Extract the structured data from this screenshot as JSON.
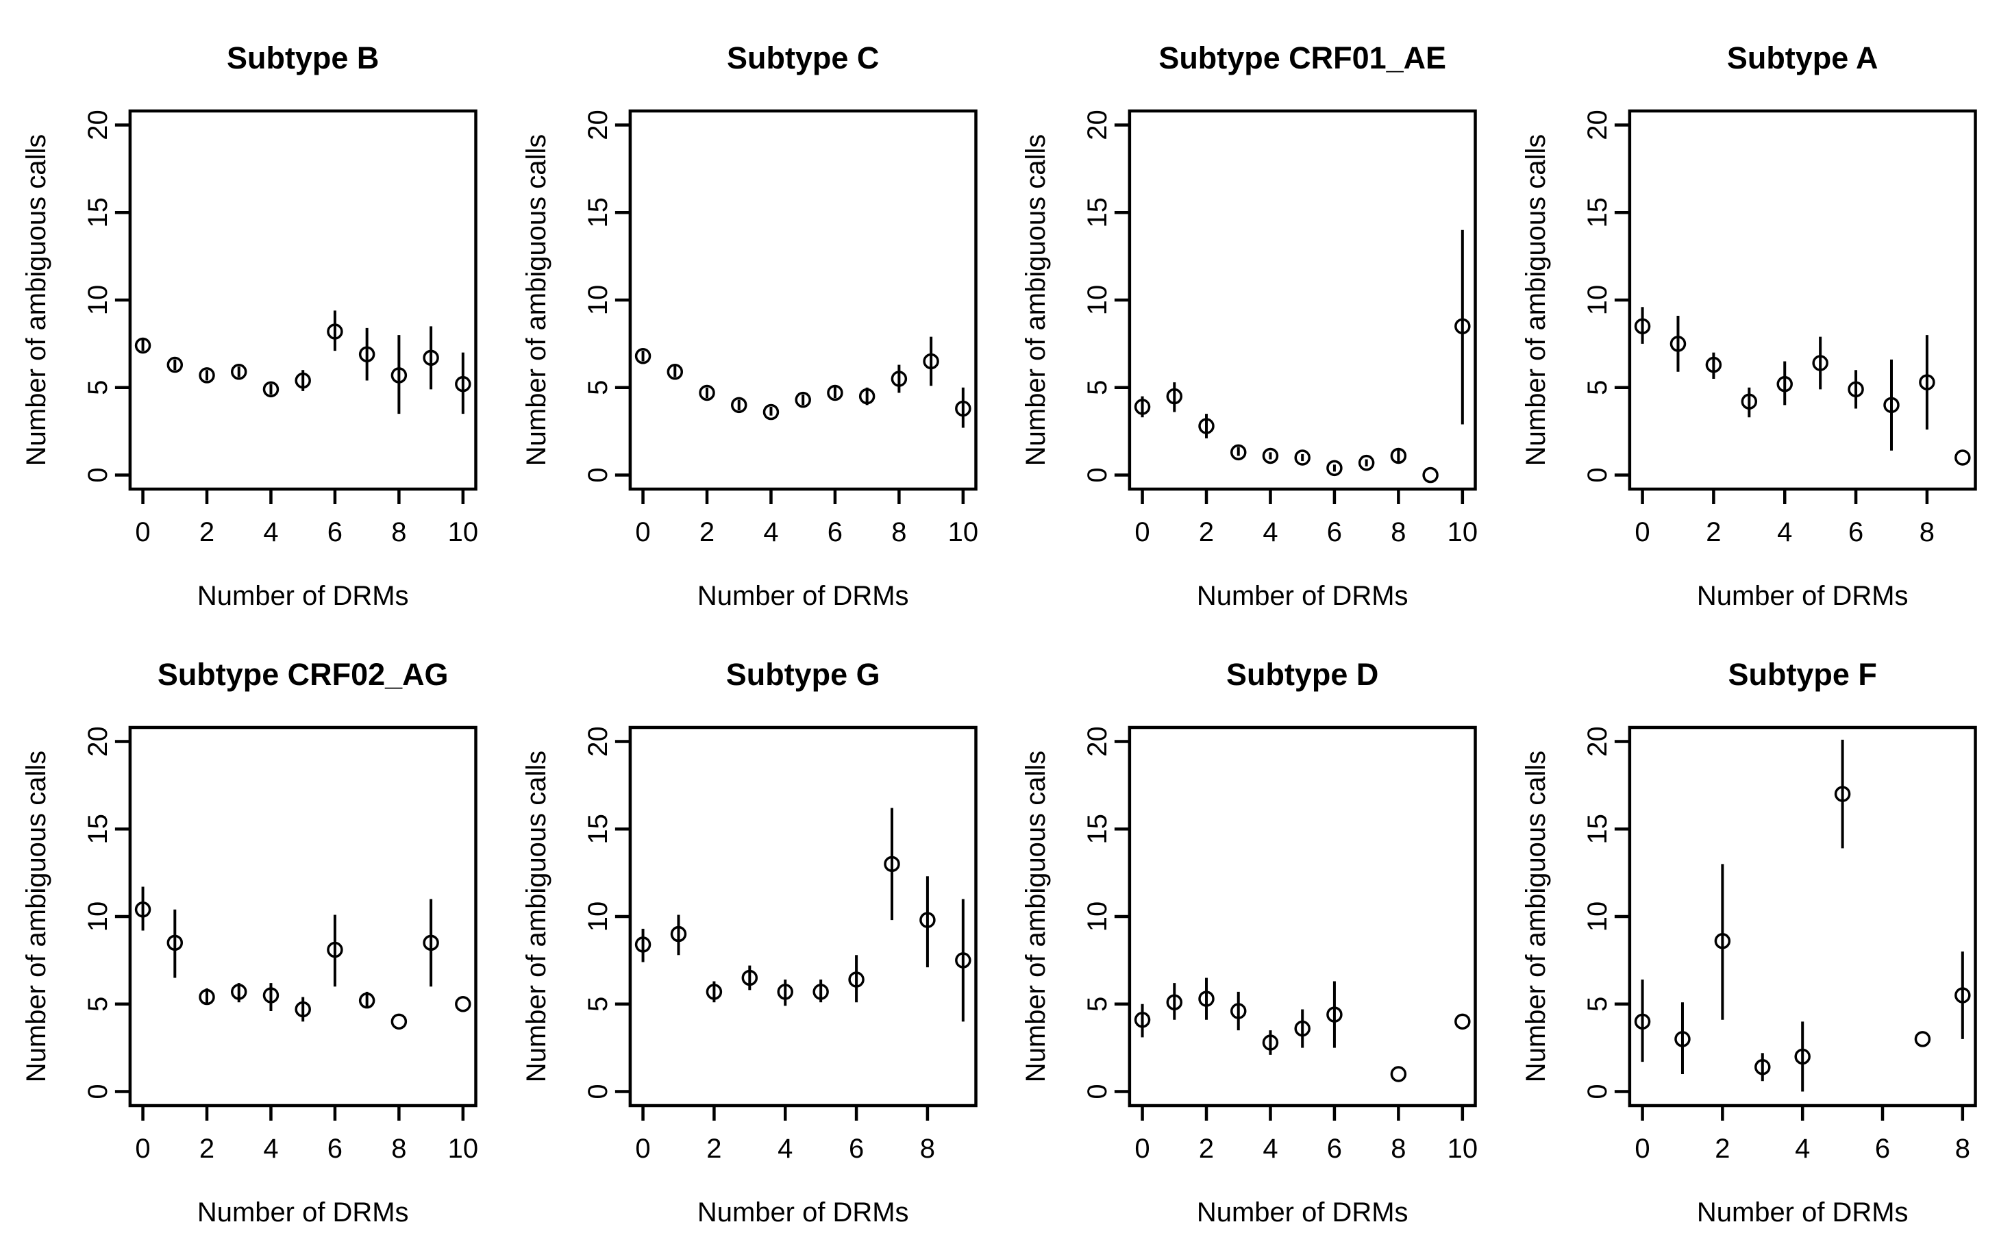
{
  "style": {
    "ink": "#000000",
    "background": "#ffffff"
  },
  "chart_data": [
    {
      "type": "scatter",
      "title": "Subtype B",
      "xlabel": "Number of DRMs",
      "ylabel": "Number of ambiguous calls",
      "xrange": [
        0,
        10
      ],
      "yrange": [
        0,
        20
      ],
      "xticks": [
        0,
        2,
        4,
        6,
        8,
        10
      ],
      "yticks": [
        0,
        5,
        10,
        15,
        20
      ],
      "points": [
        {
          "x": 0,
          "y": 7.4,
          "lo": 7.1,
          "hi": 7.8
        },
        {
          "x": 1,
          "y": 6.3,
          "lo": 6.0,
          "hi": 6.6
        },
        {
          "x": 2,
          "y": 5.7,
          "lo": 5.4,
          "hi": 6.0
        },
        {
          "x": 3,
          "y": 5.9,
          "lo": 5.6,
          "hi": 6.2
        },
        {
          "x": 4,
          "y": 4.9,
          "lo": 4.6,
          "hi": 5.2
        },
        {
          "x": 5,
          "y": 5.4,
          "lo": 4.8,
          "hi": 6.0
        },
        {
          "x": 6,
          "y": 8.2,
          "lo": 7.1,
          "hi": 9.4
        },
        {
          "x": 7,
          "y": 6.9,
          "lo": 5.4,
          "hi": 8.4
        },
        {
          "x": 8,
          "y": 5.7,
          "lo": 3.5,
          "hi": 8.0
        },
        {
          "x": 9,
          "y": 6.7,
          "lo": 4.9,
          "hi": 8.5
        },
        {
          "x": 10,
          "y": 5.2,
          "lo": 3.5,
          "hi": 7.0
        }
      ]
    },
    {
      "type": "scatter",
      "title": "Subtype C",
      "xlabel": "Number of DRMs",
      "ylabel": "Number of ambiguous calls",
      "xrange": [
        0,
        10
      ],
      "yrange": [
        0,
        20
      ],
      "xticks": [
        0,
        2,
        4,
        6,
        8,
        10
      ],
      "yticks": [
        0,
        5,
        10,
        15,
        20
      ],
      "points": [
        {
          "x": 0,
          "y": 6.8,
          "lo": 6.5,
          "hi": 7.1
        },
        {
          "x": 1,
          "y": 5.9,
          "lo": 5.6,
          "hi": 6.3
        },
        {
          "x": 2,
          "y": 4.7,
          "lo": 4.4,
          "hi": 5.0
        },
        {
          "x": 3,
          "y": 4.0,
          "lo": 3.7,
          "hi": 4.3
        },
        {
          "x": 4,
          "y": 3.6,
          "lo": 3.4,
          "hi": 3.9
        },
        {
          "x": 5,
          "y": 4.3,
          "lo": 4.0,
          "hi": 4.6
        },
        {
          "x": 6,
          "y": 4.7,
          "lo": 4.4,
          "hi": 5.1
        },
        {
          "x": 7,
          "y": 4.5,
          "lo": 4.0,
          "hi": 5.0
        },
        {
          "x": 8,
          "y": 5.5,
          "lo": 4.7,
          "hi": 6.3
        },
        {
          "x": 9,
          "y": 6.5,
          "lo": 5.1,
          "hi": 7.9
        },
        {
          "x": 10,
          "y": 3.8,
          "lo": 2.7,
          "hi": 5.0
        }
      ]
    },
    {
      "type": "scatter",
      "title": "Subtype CRF01_AE",
      "xlabel": "Number of DRMs",
      "ylabel": "Number of ambiguous calls",
      "xrange": [
        0,
        10
      ],
      "yrange": [
        0,
        20
      ],
      "xticks": [
        0,
        2,
        4,
        6,
        8,
        10
      ],
      "yticks": [
        0,
        5,
        10,
        15,
        20
      ],
      "points": [
        {
          "x": 0,
          "y": 3.9,
          "lo": 3.3,
          "hi": 4.5
        },
        {
          "x": 1,
          "y": 4.5,
          "lo": 3.6,
          "hi": 5.3
        },
        {
          "x": 2,
          "y": 2.8,
          "lo": 2.1,
          "hi": 3.5
        },
        {
          "x": 3,
          "y": 1.3,
          "lo": 1.1,
          "hi": 1.6
        },
        {
          "x": 4,
          "y": 1.1,
          "lo": 0.9,
          "hi": 1.3
        },
        {
          "x": 5,
          "y": 1.0,
          "lo": 0.8,
          "hi": 1.2
        },
        {
          "x": 6,
          "y": 0.4,
          "lo": 0.2,
          "hi": 0.6
        },
        {
          "x": 7,
          "y": 0.7,
          "lo": 0.5,
          "hi": 0.9
        },
        {
          "x": 8,
          "y": 1.1,
          "lo": 0.7,
          "hi": 1.5
        },
        {
          "x": 9,
          "y": 0.0
        },
        {
          "x": 10,
          "y": 8.5,
          "lo": 2.9,
          "hi": 14.0
        }
      ]
    },
    {
      "type": "scatter",
      "title": "Subtype A",
      "xlabel": "Number of DRMs",
      "ylabel": "Number of ambiguous calls",
      "xrange": [
        0,
        9
      ],
      "yrange": [
        0,
        20
      ],
      "xticks": [
        0,
        2,
        4,
        6,
        8
      ],
      "yticks": [
        0,
        5,
        10,
        15,
        20
      ],
      "points": [
        {
          "x": 0,
          "y": 8.5,
          "lo": 7.5,
          "hi": 9.6
        },
        {
          "x": 1,
          "y": 7.5,
          "lo": 5.9,
          "hi": 9.1
        },
        {
          "x": 2,
          "y": 6.3,
          "lo": 5.5,
          "hi": 7.0
        },
        {
          "x": 3,
          "y": 4.2,
          "lo": 3.3,
          "hi": 5.0
        },
        {
          "x": 4,
          "y": 5.2,
          "lo": 4.0,
          "hi": 6.5
        },
        {
          "x": 5,
          "y": 6.4,
          "lo": 4.9,
          "hi": 7.9
        },
        {
          "x": 6,
          "y": 4.9,
          "lo": 3.8,
          "hi": 6.0
        },
        {
          "x": 7,
          "y": 4.0,
          "lo": 1.4,
          "hi": 6.6
        },
        {
          "x": 8,
          "y": 5.3,
          "lo": 2.6,
          "hi": 8.0
        },
        {
          "x": 9,
          "y": 1.0
        }
      ]
    },
    {
      "type": "scatter",
      "title": "Subtype CRF02_AG",
      "xlabel": "Number of DRMs",
      "ylabel": "Number of ambiguous calls",
      "xrange": [
        0,
        10
      ],
      "yrange": [
        0,
        20
      ],
      "xticks": [
        0,
        2,
        4,
        6,
        8,
        10
      ],
      "yticks": [
        0,
        5,
        10,
        15,
        20
      ],
      "points": [
        {
          "x": 0,
          "y": 10.4,
          "lo": 9.2,
          "hi": 11.7
        },
        {
          "x": 1,
          "y": 8.5,
          "lo": 6.5,
          "hi": 10.4
        },
        {
          "x": 2,
          "y": 5.4,
          "lo": 5.0,
          "hi": 5.9
        },
        {
          "x": 3,
          "y": 5.7,
          "lo": 5.1,
          "hi": 6.2
        },
        {
          "x": 4,
          "y": 5.5,
          "lo": 4.6,
          "hi": 6.2
        },
        {
          "x": 5,
          "y": 4.7,
          "lo": 4.0,
          "hi": 5.4
        },
        {
          "x": 6,
          "y": 8.1,
          "lo": 6.0,
          "hi": 10.1
        },
        {
          "x": 7,
          "y": 5.2,
          "lo": 4.8,
          "hi": 5.7
        },
        {
          "x": 8,
          "y": 4.0
        },
        {
          "x": 9,
          "y": 8.5,
          "lo": 6.0,
          "hi": 11.0
        },
        {
          "x": 10,
          "y": 5.0
        }
      ]
    },
    {
      "type": "scatter",
      "title": "Subtype G",
      "xlabel": "Number of DRMs",
      "ylabel": "Number of ambiguous calls",
      "xrange": [
        0,
        9
      ],
      "yrange": [
        0,
        20
      ],
      "xticks": [
        0,
        2,
        4,
        6,
        8
      ],
      "yticks": [
        0,
        5,
        10,
        15,
        20
      ],
      "points": [
        {
          "x": 0,
          "y": 8.4,
          "lo": 7.4,
          "hi": 9.3
        },
        {
          "x": 1,
          "y": 9.0,
          "lo": 7.8,
          "hi": 10.1
        },
        {
          "x": 2,
          "y": 5.7,
          "lo": 5.1,
          "hi": 6.3
        },
        {
          "x": 3,
          "y": 6.5,
          "lo": 5.8,
          "hi": 7.2
        },
        {
          "x": 4,
          "y": 5.7,
          "lo": 4.9,
          "hi": 6.4
        },
        {
          "x": 5,
          "y": 5.7,
          "lo": 5.1,
          "hi": 6.4
        },
        {
          "x": 6,
          "y": 6.4,
          "lo": 5.1,
          "hi": 7.8
        },
        {
          "x": 7,
          "y": 13.0,
          "lo": 9.8,
          "hi": 16.2
        },
        {
          "x": 8,
          "y": 9.8,
          "lo": 7.1,
          "hi": 12.3
        },
        {
          "x": 9,
          "y": 7.5,
          "lo": 4.0,
          "hi": 11.0
        }
      ]
    },
    {
      "type": "scatter",
      "title": "Subtype D",
      "xlabel": "Number of DRMs",
      "ylabel": "Number of ambiguous calls",
      "xrange": [
        0,
        10
      ],
      "yrange": [
        0,
        20
      ],
      "xticks": [
        0,
        2,
        4,
        6,
        8,
        10
      ],
      "yticks": [
        0,
        5,
        10,
        15,
        20
      ],
      "points": [
        {
          "x": 0,
          "y": 4.1,
          "lo": 3.1,
          "hi": 5.0
        },
        {
          "x": 1,
          "y": 5.1,
          "lo": 4.1,
          "hi": 6.2
        },
        {
          "x": 2,
          "y": 5.3,
          "lo": 4.1,
          "hi": 6.5
        },
        {
          "x": 3,
          "y": 4.6,
          "lo": 3.5,
          "hi": 5.7
        },
        {
          "x": 4,
          "y": 2.8,
          "lo": 2.1,
          "hi": 3.5
        },
        {
          "x": 5,
          "y": 3.6,
          "lo": 2.5,
          "hi": 4.7
        },
        {
          "x": 6,
          "y": 4.4,
          "lo": 2.5,
          "hi": 6.3
        },
        {
          "x": 8,
          "y": 1.0
        },
        {
          "x": 10,
          "y": 4.0
        }
      ]
    },
    {
      "type": "scatter",
      "title": "Subtype F",
      "xlabel": "Number of DRMs",
      "ylabel": "Number of ambiguous calls",
      "xrange": [
        0,
        8
      ],
      "yrange": [
        0,
        20
      ],
      "xticks": [
        0,
        2,
        4,
        6,
        8
      ],
      "yticks": [
        0,
        5,
        10,
        15,
        20
      ],
      "points": [
        {
          "x": 0,
          "y": 4.0,
          "lo": 1.7,
          "hi": 6.4
        },
        {
          "x": 1,
          "y": 3.0,
          "lo": 1.0,
          "hi": 5.1
        },
        {
          "x": 2,
          "y": 8.6,
          "lo": 4.1,
          "hi": 13.0
        },
        {
          "x": 3,
          "y": 1.4,
          "lo": 0.6,
          "hi": 2.2
        },
        {
          "x": 4,
          "y": 2.0,
          "lo": 0.0,
          "hi": 4.0
        },
        {
          "x": 5,
          "y": 17.0,
          "lo": 13.9,
          "hi": 20.1
        },
        {
          "x": 7,
          "y": 3.0
        },
        {
          "x": 8,
          "y": 5.5,
          "lo": 3.0,
          "hi": 8.0
        }
      ]
    }
  ]
}
